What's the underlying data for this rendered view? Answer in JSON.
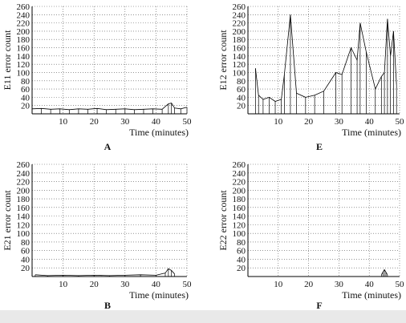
{
  "chart_data": [
    {
      "id": "A",
      "type": "line",
      "panel_label": "A",
      "ylabel": "E11 error count",
      "xlabel": "Time (minutes)",
      "xlim": [
        0,
        50
      ],
      "ylim": [
        0,
        260
      ],
      "xticks": [
        10,
        20,
        30,
        40,
        50
      ],
      "yticks": [
        20,
        40,
        60,
        80,
        100,
        120,
        140,
        160,
        180,
        200,
        220,
        240,
        260
      ],
      "grid": "dotted",
      "x": [
        0,
        3,
        6,
        9,
        12,
        15,
        18,
        21,
        24,
        27,
        30,
        33,
        36,
        39,
        42,
        44,
        45,
        46,
        48,
        50
      ],
      "y": [
        12,
        13,
        11,
        12,
        10,
        12,
        11,
        13,
        10,
        11,
        12,
        10,
        11,
        12,
        11,
        24,
        26,
        14,
        12,
        16
      ]
    },
    {
      "id": "E",
      "type": "line",
      "panel_label": "E",
      "ylabel": "E12 error count",
      "xlabel": "Time (minutes)",
      "xlim": [
        0,
        50
      ],
      "ylim": [
        0,
        260
      ],
      "xticks": [
        10,
        20,
        30,
        40,
        50
      ],
      "yticks": [
        20,
        40,
        60,
        80,
        100,
        120,
        140,
        160,
        180,
        200,
        220,
        240,
        260
      ],
      "grid": "dotted",
      "x": [
        2.5,
        3.5,
        5,
        7,
        9,
        11,
        12,
        14,
        16,
        19,
        22,
        25,
        29,
        31,
        34,
        36,
        37,
        39,
        42,
        44,
        45,
        46,
        47,
        48,
        49
      ],
      "y": [
        110,
        45,
        35,
        40,
        30,
        35,
        95,
        240,
        50,
        40,
        45,
        55,
        100,
        95,
        160,
        130,
        220,
        150,
        60,
        90,
        100,
        230,
        140,
        200,
        70
      ]
    },
    {
      "id": "B",
      "type": "line",
      "panel_label": "B",
      "ylabel": "E21 error count",
      "xlabel": "Time (minutes)",
      "xlim": [
        0,
        50
      ],
      "ylim": [
        0,
        260
      ],
      "xticks": [
        10,
        20,
        30,
        40,
        50
      ],
      "yticks": [
        20,
        40,
        60,
        80,
        100,
        120,
        140,
        160,
        180,
        200,
        220,
        240,
        260
      ],
      "grid": "dotted",
      "x": [
        1,
        5,
        10,
        15,
        20,
        25,
        30,
        35,
        40,
        43,
        44,
        45,
        46
      ],
      "y": [
        4,
        2,
        3,
        2,
        3,
        2,
        3,
        4,
        3,
        8,
        18,
        14,
        6
      ]
    },
    {
      "id": "F",
      "type": "line",
      "panel_label": "F",
      "ylabel": "E22 error count",
      "xlabel": "Time (minutes)",
      "xlim": [
        0,
        50
      ],
      "ylim": [
        0,
        260
      ],
      "xticks": [
        10,
        20,
        30,
        40,
        50
      ],
      "yticks": [
        20,
        40,
        60,
        80,
        100,
        120,
        140,
        160,
        180,
        200,
        220,
        240,
        260
      ],
      "grid": "dotted",
      "x": [
        44,
        44.5,
        45,
        45.5,
        46
      ],
      "y": [
        4,
        10,
        16,
        10,
        4
      ]
    }
  ]
}
